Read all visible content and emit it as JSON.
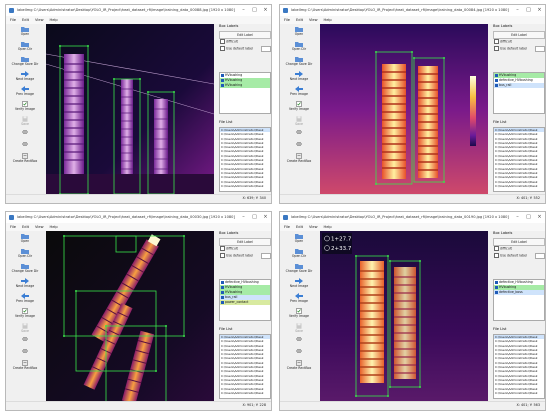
{
  "toolbar": [
    "Open",
    "Open Dir",
    "Change Save Dir",
    "Next Image",
    "Prev Image",
    "Verify Image",
    "Save",
    "",
    "",
    "Create RectBox"
  ],
  "menus": [
    "File",
    "Edit",
    "View",
    "Help"
  ],
  "panel": {
    "box_labels_title": "Box Labels",
    "edit_label": "Edit Label",
    "difficult": "difficult",
    "use_default": "Use default label",
    "file_list_title": "File List",
    "file_path": "C:\\Users\\Administrator\\Desk"
  },
  "windows": [
    {
      "title": "labelImg C:\\Users\\Administrator\\Desktop\\YOLO_IR_Project\\heat_dataset_rfi\\image\\training_data_00088.jpg [1920 x 1080]",
      "labels": [
        {
          "text": "HVbushing",
          "highlight": false
        },
        {
          "text": "HVbushing",
          "highlight": true
        },
        {
          "text": "HVbushing",
          "highlight": true
        }
      ],
      "files": [
        "",
        "",
        "",
        "",
        "",
        "",
        "",
        "",
        "",
        "",
        "",
        "",
        "",
        ""
      ],
      "coord": "X: 639; Y: 340",
      "thermal": ""
    },
    {
      "title": "labelImg C:\\Users\\Administrator\\Desktop\\YOLO_IR_Project\\heat_dataset_rfi\\image\\training_data_00084.jpg [1920 x 1080]",
      "labels": [
        {
          "text": "HVbushing",
          "highlight": true
        },
        {
          "text": "defective_HVbushing",
          "highlight": false
        },
        {
          "text": "bus_rail",
          "highlight": false
        }
      ],
      "files": [
        "",
        "",
        "",
        "",
        "",
        "",
        "",
        "",
        "",
        "",
        "",
        "",
        "",
        ""
      ],
      "coord": "X: 401; Y: 552",
      "thermal": "thermal"
    },
    {
      "title": "labelImg C:\\Users\\Administrator\\Desktop\\YOLO_IR_Project\\heat_dataset_rfi\\image\\training_data_00030.jpg [1920 x 1080]",
      "labels": [
        {
          "text": "defective_HVbushing",
          "highlight": false
        },
        {
          "text": "HVbushing",
          "highlight": true
        },
        {
          "text": "HVbushing",
          "highlight": true
        },
        {
          "text": "bus_rail",
          "highlight": false
        },
        {
          "text": "power_contact",
          "highlight": true
        }
      ],
      "files": [
        "",
        "",
        "",
        "",
        "",
        "",
        "",
        "",
        "",
        "",
        "",
        "",
        "",
        ""
      ],
      "coord": "X: 901; Y: 228",
      "thermal": ""
    },
    {
      "title": "labelImg C:\\Users\\Administrator\\Desktop\\YOLO_IR_Project\\heat_dataset_rfi\\image\\training_data_00190.jpg [1920 x 1080]",
      "labels": [
        {
          "text": "defective_HVbushing",
          "highlight": false
        },
        {
          "text": "HVbushing",
          "highlight": true
        },
        {
          "text": "defective_boss",
          "highlight": false
        }
      ],
      "files": [
        "",
        "",
        "",
        "",
        "",
        "",
        "",
        "",
        "",
        "",
        "",
        "",
        "",
        ""
      ],
      "coord": "X: 401; Y: 563",
      "thermal": "spots"
    }
  ],
  "spot_labels": [
    "1+27.7",
    "2+33.7"
  ],
  "colors": {
    "box_green": "#39e44a",
    "label_highlight": "#a6eba6",
    "selection": "#cfe3fb"
  }
}
